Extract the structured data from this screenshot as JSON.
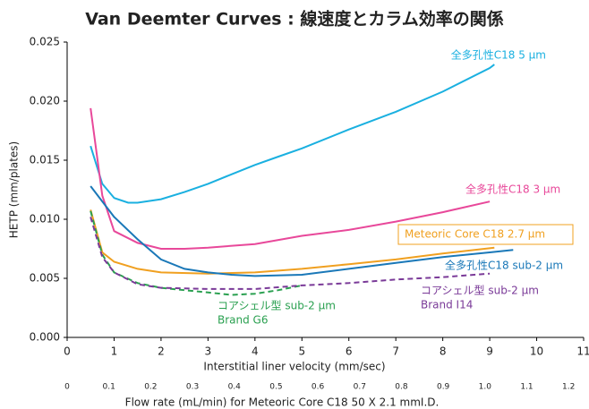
{
  "chart_data": {
    "type": "line",
    "title": "Van Deemter Curves : 線速度とカラム効率の関係",
    "x_label": "Interstitial liner velocity (mm/sec)",
    "x2_label": "Flow rate (mL/min) for Meteoric Core C18  50 X 2.1 mmI.D.",
    "y_label": "HETP (mm/plates)",
    "xlim": [
      0,
      11
    ],
    "xticks": [
      0,
      1,
      2,
      3,
      4,
      5,
      6,
      7,
      8,
      9,
      10,
      11
    ],
    "x2lim": [
      0,
      1.236
    ],
    "x2ticks": [
      0,
      0.1,
      0.2,
      0.3,
      0.4,
      0.5,
      0.6,
      0.7,
      0.8,
      0.9,
      {
        "value": 1,
        "label": "1.0"
      },
      1.1,
      1.2
    ],
    "ylim": [
      0,
      0.025
    ],
    "yticks": [
      {
        "value": 0,
        "label": "0.000"
      },
      {
        "value": 0.005,
        "label": "0.005"
      },
      {
        "value": 0.01,
        "label": "0.010"
      },
      {
        "value": 0.015,
        "label": "0.015"
      },
      {
        "value": 0.02,
        "label": "0.020"
      },
      {
        "value": 0.025,
        "label": "0.025"
      }
    ],
    "series": [
      {
        "name": "全多孔性C18 5 μm",
        "color": "#1ab0e0",
        "dash": false,
        "x": [
          0.5,
          0.75,
          1,
          1.3,
          1.5,
          2,
          2.5,
          3,
          3.5,
          4,
          4.5,
          5,
          6,
          7,
          8,
          9,
          9.1
        ],
        "values": [
          0.0162,
          0.013,
          0.0118,
          0.0114,
          0.0114,
          0.0117,
          0.0123,
          0.013,
          0.0138,
          0.0146,
          0.0153,
          0.016,
          0.0176,
          0.0191,
          0.0208,
          0.0228,
          0.0231
        ]
      },
      {
        "name": "全多孔性C18 3 μm",
        "color": "#e8489a",
        "dash": false,
        "x": [
          0.5,
          0.75,
          1,
          1.5,
          2,
          2.5,
          3,
          4,
          5,
          6,
          7,
          8,
          9
        ],
        "values": [
          0.0194,
          0.012,
          0.009,
          0.008,
          0.0075,
          0.0075,
          0.0076,
          0.0079,
          0.0086,
          0.0091,
          0.0098,
          0.0106,
          0.0115
        ]
      },
      {
        "name": "Meteoric Core C18 2.7 μm",
        "color": "#f0a020",
        "dash": false,
        "boxed": true,
        "x": [
          0.5,
          0.75,
          1,
          1.5,
          2,
          3,
          4,
          5,
          6,
          7,
          8,
          9.1
        ],
        "values": [
          0.0108,
          0.0072,
          0.0064,
          0.0058,
          0.0055,
          0.0054,
          0.0055,
          0.0058,
          0.0062,
          0.0066,
          0.0071,
          0.0076
        ]
      },
      {
        "name": "全多孔性C18 sub-2 μm",
        "color": "#1a78b8",
        "dash": false,
        "x": [
          0.5,
          1,
          1.5,
          2,
          2.5,
          3,
          3.5,
          4,
          5,
          6,
          7,
          8,
          9,
          9.5
        ],
        "values": [
          0.0128,
          0.0102,
          0.0083,
          0.0066,
          0.0058,
          0.0055,
          0.0053,
          0.0052,
          0.0053,
          0.0058,
          0.0063,
          0.0068,
          0.0072,
          0.0074
        ]
      },
      {
        "name": "コアシェル型 sub-2 μm",
        "brand": "Brand G6",
        "color": "#2aa050",
        "dash": true,
        "x": [
          0.5,
          0.75,
          1,
          1.5,
          2,
          2.5,
          3,
          3.5,
          4,
          4.5,
          5
        ],
        "values": [
          0.0107,
          0.007,
          0.0055,
          0.0046,
          0.0042,
          0.004,
          0.0038,
          0.0036,
          0.0037,
          0.004,
          0.0044
        ]
      },
      {
        "name": "コアシェル型 sub-2 μm",
        "brand": "Brand I14",
        "color": "#7a3a98",
        "dash": true,
        "x": [
          0.5,
          0.75,
          1,
          1.5,
          2,
          3,
          4,
          5,
          6,
          7,
          8,
          9
        ],
        "values": [
          0.0102,
          0.0068,
          0.0055,
          0.0045,
          0.0042,
          0.0041,
          0.0041,
          0.0044,
          0.0046,
          0.0049,
          0.0051,
          0.0054
        ]
      }
    ]
  }
}
